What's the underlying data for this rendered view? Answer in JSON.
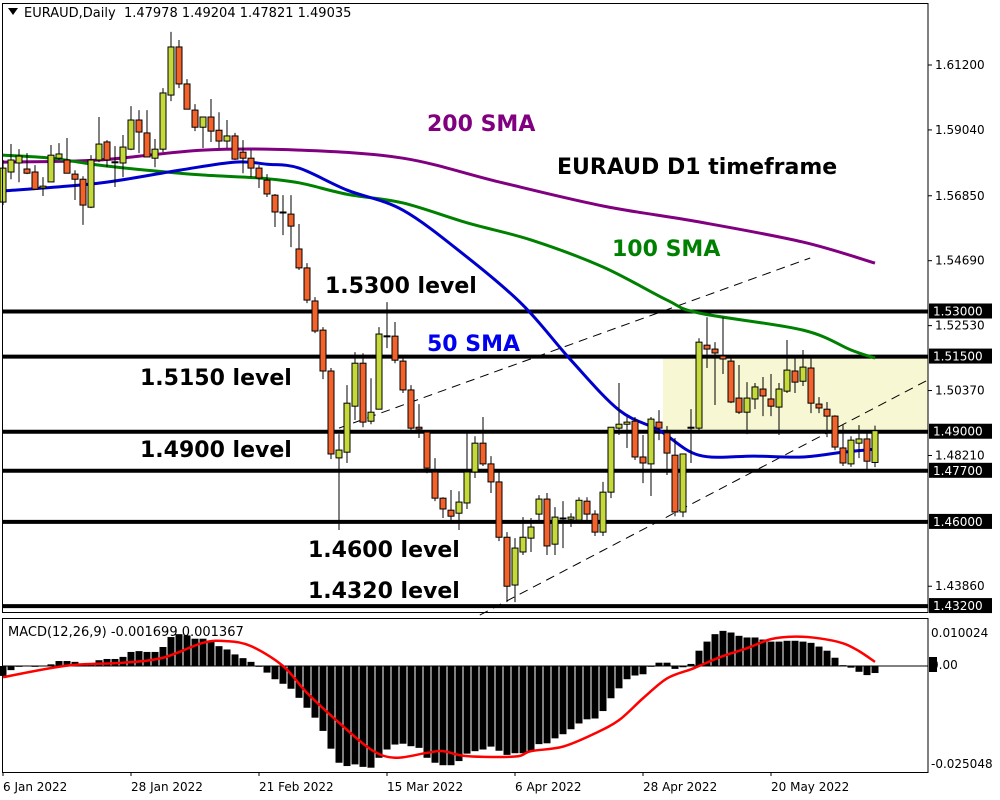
{
  "header": {
    "symbol": "EURAUD,Daily",
    "ohlc": "1.47978 1.49204 1.47821 1.49035"
  },
  "macd_header": "MACD(12,26,9) -0.001699 0.001367",
  "colors": {
    "bull": "#c5d93a",
    "bear": "#f2622a",
    "sma200": "#800080",
    "sma100": "#008000",
    "sma50": "#0000cc",
    "signal": "#ff0000",
    "zone": "#f7f7d4",
    "level": "#000000"
  },
  "annotations": {
    "sma200": "200 SMA",
    "title": "EURAUD D1 timeframe",
    "sma100": "100 SMA",
    "l1530": "1.5300 level",
    "sma50": "50 SMA",
    "l1515": "1.5150 level",
    "l1490": "1.4900 level",
    "l1460": "1.4600 level",
    "l1432": "1.4320 level"
  },
  "chart_data": [
    {
      "type": "candlestick",
      "title": "EURAUD,Daily",
      "ylim": [
        1.4125,
        1.6336
      ],
      "price_ticks": [
        "1.61200",
        "1.59040",
        "1.56850",
        "1.54690",
        "1.52530",
        "1.50370",
        "1.48210",
        "1.43860"
      ],
      "level_labels": [
        "1.53000",
        "1.51500",
        "1.49000",
        "1.47700",
        "1.46000",
        "1.43200"
      ],
      "levels": [
        1.53,
        1.515,
        1.49,
        1.477,
        1.46,
        1.432
      ],
      "zone": {
        "from_bar": 83,
        "top": 1.515,
        "bottom": 1.49
      },
      "x_ticks": [
        {
          "label": "6 Jan 2022",
          "bar": 0
        },
        {
          "label": "28 Jan 2022",
          "bar": 16
        },
        {
          "label": "21 Feb 2022",
          "bar": 32
        },
        {
          "label": "15 Mar 2022",
          "bar": 48
        },
        {
          "label": "6 Apr 2022",
          "bar": 64
        },
        {
          "label": "28 Apr 2022",
          "bar": 80
        },
        {
          "label": "20 May 2022",
          "bar": 96
        }
      ],
      "ohlc": [
        [
          1.5664,
          1.5804,
          1.5654,
          1.5777
        ],
        [
          1.5764,
          1.5857,
          1.574,
          1.5804
        ],
        [
          1.5794,
          1.584,
          1.573,
          1.5817
        ],
        [
          1.5774,
          1.5827,
          1.5757,
          1.576
        ],
        [
          1.5764,
          1.5787,
          1.5704,
          1.5707
        ],
        [
          1.5711,
          1.5747,
          1.5684,
          1.5717
        ],
        [
          1.5731,
          1.5854,
          1.5731,
          1.582
        ],
        [
          1.581,
          1.586,
          1.5804,
          1.5824
        ],
        [
          1.5804,
          1.5877,
          1.576,
          1.576
        ],
        [
          1.5757,
          1.577,
          1.5671,
          1.574
        ],
        [
          1.574,
          1.575,
          1.5588,
          1.5654
        ],
        [
          1.5647,
          1.582,
          1.5644,
          1.5804
        ],
        [
          1.5804,
          1.5947,
          1.5797,
          1.5857
        ],
        [
          1.5864,
          1.587,
          1.578,
          1.5804
        ],
        [
          1.5797,
          1.585,
          1.5714,
          1.5798
        ],
        [
          1.5794,
          1.5887,
          1.5747,
          1.5847
        ],
        [
          1.584,
          1.5983,
          1.5837,
          1.5937
        ],
        [
          1.5937,
          1.597,
          1.5827,
          1.5897
        ],
        [
          1.5894,
          1.597,
          1.5814,
          1.5814
        ],
        [
          1.581,
          1.5874,
          1.578,
          1.584
        ],
        [
          1.584,
          1.6043,
          1.583,
          1.6027
        ],
        [
          1.602,
          1.623,
          1.6,
          1.618
        ],
        [
          1.618,
          1.6203,
          1.6043,
          1.6057
        ],
        [
          1.6057,
          1.6073,
          1.5973,
          1.5973
        ],
        [
          1.597,
          1.599,
          1.59,
          1.5913
        ],
        [
          1.5913,
          1.5947,
          1.5844,
          1.5947
        ],
        [
          1.5947,
          1.6007,
          1.5864,
          1.59
        ],
        [
          1.5903,
          1.5963,
          1.5844,
          1.5867
        ],
        [
          1.5867,
          1.5937,
          1.5844,
          1.5884
        ],
        [
          1.5884,
          1.5894,
          1.5804,
          1.5807
        ],
        [
          1.583,
          1.587,
          1.576,
          1.581
        ],
        [
          1.581,
          1.5837,
          1.5747,
          1.5777
        ],
        [
          1.5777,
          1.5787,
          1.5711,
          1.5744
        ],
        [
          1.5737,
          1.5757,
          1.5681,
          1.5691
        ],
        [
          1.5687,
          1.5691,
          1.5581,
          1.5631
        ],
        [
          1.5631,
          1.5687,
          1.5554,
          1.563
        ],
        [
          1.5624,
          1.5687,
          1.5514,
          1.5584
        ],
        [
          1.5508,
          1.5591,
          1.5438,
          1.5445
        ],
        [
          1.5445,
          1.5461,
          1.5328,
          1.5338
        ],
        [
          1.5335,
          1.5348,
          1.5228,
          1.5235
        ],
        [
          1.5238,
          1.5248,
          1.5075,
          1.5102
        ],
        [
          1.5102,
          1.5112,
          1.4809,
          1.4826
        ],
        [
          1.4813,
          1.4892,
          1.4573,
          1.4839
        ],
        [
          1.4832,
          1.5055,
          1.4796,
          1.4995
        ],
        [
          1.4985,
          1.5165,
          1.4939,
          1.5128
        ],
        [
          1.5128,
          1.5161,
          1.4915,
          1.4932
        ],
        [
          1.4935,
          1.5078,
          1.4925,
          1.4965
        ],
        [
          1.4975,
          1.5248,
          1.4975,
          1.5225
        ],
        [
          1.5218,
          1.5331,
          1.5178,
          1.5219
        ],
        [
          1.5218,
          1.5265,
          1.5128,
          1.5138
        ],
        [
          1.5135,
          1.5145,
          1.5029,
          1.5039
        ],
        [
          1.5039,
          1.5055,
          1.4905,
          1.4912
        ],
        [
          1.4915,
          1.4992,
          1.4879,
          1.4909
        ],
        [
          1.4899,
          1.4899,
          1.4762,
          1.4779
        ],
        [
          1.4766,
          1.4812,
          1.4669,
          1.4679
        ],
        [
          1.4679,
          1.4682,
          1.4613,
          1.4643
        ],
        [
          1.4639,
          1.4706,
          1.4606,
          1.4619
        ],
        [
          1.4629,
          1.4702,
          1.4573,
          1.4666
        ],
        [
          1.4663,
          1.4895,
          1.4643,
          1.4766
        ],
        [
          1.4766,
          1.4885,
          1.4746,
          1.4862
        ],
        [
          1.4862,
          1.4949,
          1.4786,
          1.4793
        ],
        [
          1.4793,
          1.4819,
          1.4696,
          1.4733
        ],
        [
          1.4733,
          1.4766,
          1.4536,
          1.4549
        ],
        [
          1.4549,
          1.4566,
          1.4333,
          1.4386
        ],
        [
          1.439,
          1.4546,
          1.4333,
          1.4513
        ],
        [
          1.45,
          1.4616,
          1.449,
          1.4549
        ],
        [
          1.4546,
          1.4613,
          1.45,
          1.4583
        ],
        [
          1.4626,
          1.4689,
          1.4596,
          1.4676
        ],
        [
          1.4676,
          1.4696,
          1.449,
          1.452
        ],
        [
          1.4526,
          1.4649,
          1.449,
          1.4616
        ],
        [
          1.4613,
          1.4669,
          1.4513,
          1.4612
        ],
        [
          1.4609,
          1.4629,
          1.4583,
          1.4616
        ],
        [
          1.4606,
          1.4682,
          1.4599,
          1.4672
        ],
        [
          1.4669,
          1.4682,
          1.4606,
          1.4626
        ],
        [
          1.4626,
          1.4639,
          1.4553,
          1.4566
        ],
        [
          1.4566,
          1.4733,
          1.4553,
          1.4699
        ],
        [
          1.4699,
          1.4915,
          1.4679,
          1.4915
        ],
        [
          1.4912,
          1.5062,
          1.4889,
          1.4925
        ],
        [
          1.4925,
          1.4949,
          1.4846,
          1.4932
        ],
        [
          1.4935,
          1.4949,
          1.4806,
          1.4816
        ],
        [
          1.4816,
          1.4889,
          1.4729,
          1.4796
        ],
        [
          1.4793,
          1.4949,
          1.4686,
          1.4942
        ],
        [
          1.4932,
          1.4972,
          1.4872,
          1.4912
        ],
        [
          1.4896,
          1.4919,
          1.4756,
          1.4829
        ],
        [
          1.4822,
          1.4879,
          1.4619,
          1.4633
        ],
        [
          1.4633,
          1.4822,
          1.4616,
          1.4826
        ],
        [
          1.4912,
          1.4975,
          1.4796,
          1.4915
        ],
        [
          1.4912,
          1.5211,
          1.4905,
          1.5198
        ],
        [
          1.5188,
          1.5281,
          1.5112,
          1.5175
        ],
        [
          1.5175,
          1.5198,
          1.4989,
          1.5162
        ],
        [
          1.5152,
          1.5281,
          1.5092,
          1.5142
        ],
        [
          1.5135,
          1.5145,
          1.4995,
          1.4999
        ],
        [
          1.5012,
          1.5122,
          1.4959,
          1.4965
        ],
        [
          1.4965,
          1.5065,
          1.4892,
          1.5012
        ],
        [
          1.5009,
          1.5062,
          1.4975,
          1.5049
        ],
        [
          1.5042,
          1.5082,
          1.4952,
          1.5019
        ],
        [
          1.5009,
          1.5092,
          1.4952,
          1.4985
        ],
        [
          1.4982,
          1.5062,
          1.4889,
          1.5042
        ],
        [
          1.5035,
          1.5205,
          1.5029,
          1.5105
        ],
        [
          1.5102,
          1.5145,
          1.5029,
          1.5065
        ],
        [
          1.5068,
          1.5172,
          1.5052,
          1.5115
        ],
        [
          1.5112,
          1.5145,
          1.4962,
          1.4995
        ],
        [
          1.4992,
          1.5015,
          1.4962,
          1.4979
        ],
        [
          1.4975,
          1.4999,
          1.4882,
          1.4952
        ],
        [
          1.4952,
          1.4955,
          1.4839,
          1.4849
        ],
        [
          1.4846,
          1.4922,
          1.4786,
          1.4796
        ],
        [
          1.4793,
          1.4885,
          1.4783,
          1.4872
        ],
        [
          1.4862,
          1.4922,
          1.4812,
          1.4876
        ],
        [
          1.4876,
          1.4905,
          1.4769,
          1.4802
        ],
        [
          1.47978,
          1.49204,
          1.47821,
          1.49035
        ]
      ],
      "sma200": [
        [
          0,
          1.5797
        ],
        [
          12,
          1.5804
        ],
        [
          25,
          1.5837
        ],
        [
          37,
          1.5837
        ],
        [
          50,
          1.581
        ],
        [
          62,
          1.5731
        ],
        [
          75,
          1.5651
        ],
        [
          87,
          1.5598
        ],
        [
          100,
          1.5531
        ],
        [
          109,
          1.5461
        ]
      ],
      "sma100": [
        [
          0,
          1.582
        ],
        [
          6,
          1.581
        ],
        [
          12,
          1.5787
        ],
        [
          18,
          1.577
        ],
        [
          25,
          1.5754
        ],
        [
          32,
          1.5744
        ],
        [
          37,
          1.5728
        ],
        [
          43,
          1.569
        ],
        [
          50,
          1.5661
        ],
        [
          58,
          1.5595
        ],
        [
          66,
          1.5538
        ],
        [
          75,
          1.5448
        ],
        [
          83,
          1.5338
        ],
        [
          87,
          1.5295
        ],
        [
          100,
          1.5238
        ],
        [
          106,
          1.5172
        ],
        [
          109,
          1.5145
        ]
      ],
      "sma50": [
        [
          0,
          1.5701
        ],
        [
          12,
          1.5727
        ],
        [
          22,
          1.577
        ],
        [
          29,
          1.5797
        ],
        [
          33,
          1.579
        ],
        [
          37,
          1.5777
        ],
        [
          43,
          1.5704
        ],
        [
          50,
          1.5637
        ],
        [
          58,
          1.5481
        ],
        [
          65,
          1.5321
        ],
        [
          71,
          1.5138
        ],
        [
          77,
          1.4972
        ],
        [
          82,
          1.4905
        ],
        [
          87,
          1.4822
        ],
        [
          94,
          1.4819
        ],
        [
          100,
          1.4816
        ],
        [
          105,
          1.4832
        ],
        [
          109,
          1.4842
        ]
      ],
      "trendlines": [
        {
          "from": [
            42,
            1.4912
          ],
          "to": [
            100.9,
            1.5478
          ]
        },
        {
          "from": [
            59.6,
            1.429
          ],
          "to": [
            115.6,
            1.5072
          ]
        }
      ]
    },
    {
      "type": "bar",
      "title": "MACD(12,26,9)",
      "macd": -0.001699,
      "signal_value": 0.001367,
      "ylim": [
        -0.025048,
        0.010024
      ],
      "y_ticks": [
        "0.010024",
        "0.00",
        "-0.025048"
      ],
      "histogram": [
        -0.0024,
        -0.001,
        -0.0002,
        0.0,
        -0.0002,
        0.0001,
        0.0004,
        0.0012,
        0.0012,
        0.001,
        0.0004,
        0.0004,
        0.0014,
        0.0017,
        0.0017,
        0.0022,
        0.0034,
        0.0036,
        0.0034,
        0.0034,
        0.0046,
        0.007,
        0.0077,
        0.0074,
        0.0066,
        0.0066,
        0.0058,
        0.0048,
        0.004,
        0.0028,
        0.0019,
        0.001,
        -0.0002,
        -0.0016,
        -0.0032,
        -0.0043,
        -0.0055,
        -0.0077,
        -0.0101,
        -0.0125,
        -0.0157,
        -0.02,
        -0.0234,
        -0.0242,
        -0.0238,
        -0.0244,
        -0.0246,
        -0.0222,
        -0.0202,
        -0.019,
        -0.0188,
        -0.0194,
        -0.0198,
        -0.0222,
        -0.0234,
        -0.024,
        -0.024,
        -0.023,
        -0.0212,
        -0.0206,
        -0.0202,
        -0.0195,
        -0.0205,
        -0.0215,
        -0.0211,
        -0.0211,
        -0.0207,
        -0.0189,
        -0.0187,
        -0.0175,
        -0.0165,
        -0.0153,
        -0.0139,
        -0.0129,
        -0.0127,
        -0.0109,
        -0.0078,
        -0.0054,
        -0.0032,
        -0.0023,
        -0.002,
        -0.0002,
        0.0008,
        0.0008,
        -0.0007,
        -0.0003,
        0.0005,
        0.0037,
        0.0059,
        0.0077,
        0.0085,
        0.0081,
        0.0073,
        0.0069,
        0.0069,
        0.0064,
        0.0059,
        0.0059,
        0.0061,
        0.0061,
        0.0059,
        0.0056,
        0.0047,
        0.0037,
        0.002,
        0.0002,
        -0.0004,
        -0.0014,
        -0.0022,
        -0.0017
      ],
      "signal": [
        [
          0,
          -0.0027
        ],
        [
          8,
          0.0001
        ],
        [
          15,
          0.0008
        ],
        [
          20,
          0.002
        ],
        [
          25,
          0.0056
        ],
        [
          28,
          0.006
        ],
        [
          31,
          0.0048
        ],
        [
          35,
          0.0
        ],
        [
          38,
          -0.0065
        ],
        [
          42,
          -0.0137
        ],
        [
          46,
          -0.0202
        ],
        [
          49,
          -0.0222
        ],
        [
          53,
          -0.021
        ],
        [
          55,
          -0.0206
        ],
        [
          58,
          -0.0218
        ],
        [
          64,
          -0.0219
        ],
        [
          66,
          -0.0206
        ],
        [
          70,
          -0.0195
        ],
        [
          74,
          -0.0163
        ],
        [
          77,
          -0.0131
        ],
        [
          80,
          -0.0078
        ],
        [
          83,
          -0.003
        ],
        [
          86,
          -0.0008
        ],
        [
          87,
          0.0
        ],
        [
          90,
          0.0024
        ],
        [
          93,
          0.0043
        ],
        [
          96,
          0.0065
        ],
        [
          99,
          0.0071
        ],
        [
          102,
          0.0067
        ],
        [
          105,
          0.0055
        ],
        [
          107,
          0.0036
        ],
        [
          109,
          0.001
        ]
      ]
    }
  ]
}
